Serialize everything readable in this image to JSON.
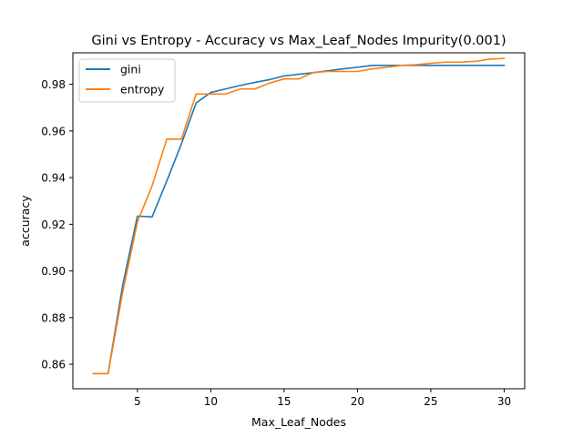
{
  "chart_data": {
    "type": "line",
    "title": "Gini vs Entropy - Accuracy vs Max_Leaf_Nodes Impurity(0.001)",
    "xlabel": "Max_Leaf_Nodes",
    "ylabel": "accuracy",
    "xlim": [
      0.6,
      31.4
    ],
    "ylim": [
      0.8495,
      0.9935
    ],
    "xticks": [
      5,
      10,
      15,
      20,
      25,
      30
    ],
    "yticks": [
      0.86,
      0.88,
      0.9,
      0.92,
      0.94,
      0.96,
      0.98
    ],
    "ytick_labels": [
      "0.86",
      "0.88",
      "0.90",
      "0.92",
      "0.94",
      "0.96",
      "0.98"
    ],
    "grid": false,
    "legend_position": "top-left",
    "x": [
      2,
      3,
      4,
      5,
      6,
      7,
      8,
      9,
      10,
      11,
      12,
      13,
      14,
      15,
      16,
      17,
      18,
      19,
      20,
      21,
      22,
      23,
      24,
      25,
      26,
      27,
      28,
      29,
      30
    ],
    "series": [
      {
        "name": "gini",
        "color": "#1f77b4",
        "values": [
          0.856,
          0.856,
          0.894,
          0.9235,
          0.9232,
          0.9385,
          0.9545,
          0.972,
          0.9765,
          0.978,
          0.9795,
          0.9808,
          0.982,
          0.9836,
          0.9843,
          0.985,
          0.9858,
          0.9866,
          0.9873,
          0.9881,
          0.9881,
          0.9881,
          0.9881,
          0.9881,
          0.9881,
          0.9881,
          0.9881,
          0.9881,
          0.9881
        ]
      },
      {
        "name": "entropy",
        "color": "#ff7f0e",
        "values": [
          0.856,
          0.856,
          0.891,
          0.921,
          0.9365,
          0.9565,
          0.9565,
          0.9758,
          0.9758,
          0.9758,
          0.978,
          0.978,
          0.9805,
          0.9823,
          0.9823,
          0.9851,
          0.9855,
          0.9855,
          0.9855,
          0.9866,
          0.9873,
          0.9881,
          0.9884,
          0.989,
          0.9895,
          0.9895,
          0.9898,
          0.9908,
          0.9911
        ]
      }
    ]
  }
}
